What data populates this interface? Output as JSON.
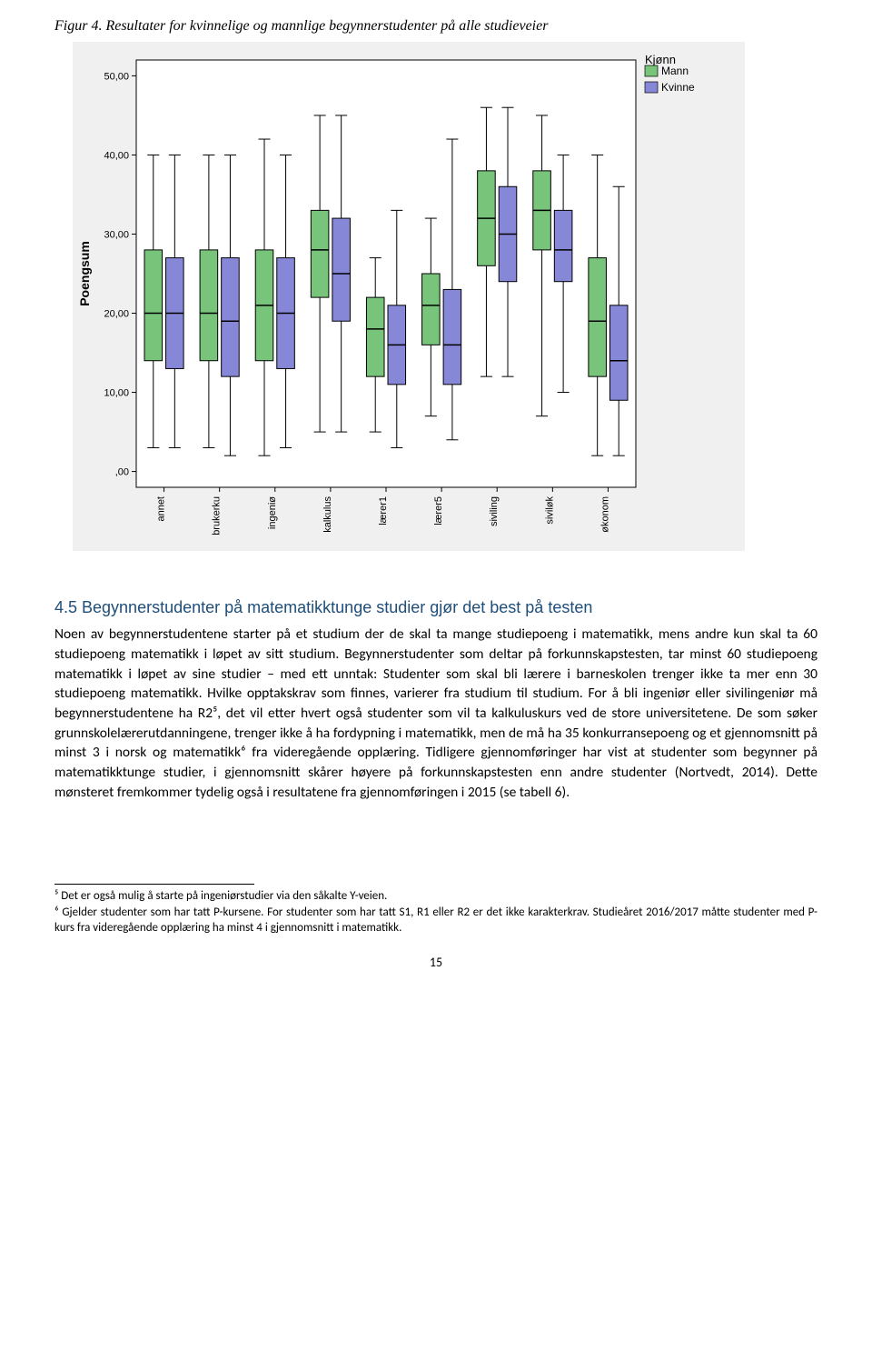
{
  "figure_caption": "Figur 4. Resultater for kvinnelige og mannlige begynnerstudenter på alle studieveier",
  "chart": {
    "type": "boxplot",
    "xlabel": "",
    "ylabel": "Poengsum",
    "ylabel_fontsize": 14,
    "ylabel_fontweight": "bold",
    "background_color": "#f0f0f0",
    "plot_bg_color": "#ffffff",
    "border_color": "#000000",
    "ylim": [
      -2,
      52
    ],
    "yticks": [
      0,
      10,
      20,
      30,
      40,
      50
    ],
    "ytick_labels": [
      ",00",
      "10,00",
      "20,00",
      "30,00",
      "40,00",
      "50,00"
    ],
    "tick_fontsize": 11,
    "categories": [
      "annet",
      "brukerku",
      "ingeniø",
      "kalkulus",
      "lærer1",
      "lærer5",
      "siviling",
      "siviløk",
      "økonom"
    ],
    "legend": {
      "title": "Kjønn",
      "items": [
        {
          "label": "Mann",
          "color": "#78c47a"
        },
        {
          "label": "Kvinne",
          "color": "#8787d8"
        }
      ],
      "title_fontsize": 13,
      "item_fontsize": 12
    },
    "box_colors": {
      "mann": "#78c47a",
      "kvinne": "#8787d8"
    },
    "box_border": "#000000",
    "median_color": "#000000",
    "whisker_color": "#000000",
    "box_width": 0.32,
    "boxes": [
      {
        "cat": "annet",
        "group": "mann",
        "min": 3,
        "q1": 14,
        "med": 20,
        "q3": 28,
        "max": 40
      },
      {
        "cat": "annet",
        "group": "kvinne",
        "min": 3,
        "q1": 13,
        "med": 20,
        "q3": 27,
        "max": 40
      },
      {
        "cat": "brukerku",
        "group": "mann",
        "min": 3,
        "q1": 14,
        "med": 20,
        "q3": 28,
        "max": 40
      },
      {
        "cat": "brukerku",
        "group": "kvinne",
        "min": 2,
        "q1": 12,
        "med": 19,
        "q3": 27,
        "max": 40
      },
      {
        "cat": "ingeniø",
        "group": "mann",
        "min": 2,
        "q1": 14,
        "med": 21,
        "q3": 28,
        "max": 42
      },
      {
        "cat": "ingeniø",
        "group": "kvinne",
        "min": 3,
        "q1": 13,
        "med": 20,
        "q3": 27,
        "max": 40
      },
      {
        "cat": "kalkulus",
        "group": "mann",
        "min": 5,
        "q1": 22,
        "med": 28,
        "q3": 33,
        "max": 45
      },
      {
        "cat": "kalkulus",
        "group": "kvinne",
        "min": 5,
        "q1": 19,
        "med": 25,
        "q3": 32,
        "max": 45
      },
      {
        "cat": "lærer1",
        "group": "mann",
        "min": 5,
        "q1": 12,
        "med": 18,
        "q3": 22,
        "max": 27
      },
      {
        "cat": "lærer1",
        "group": "kvinne",
        "min": 3,
        "q1": 11,
        "med": 16,
        "q3": 21,
        "max": 33
      },
      {
        "cat": "lærer5",
        "group": "mann",
        "min": 7,
        "q1": 16,
        "med": 21,
        "q3": 25,
        "max": 32
      },
      {
        "cat": "lærer5",
        "group": "kvinne",
        "min": 4,
        "q1": 11,
        "med": 16,
        "q3": 23,
        "max": 42
      },
      {
        "cat": "siviling",
        "group": "mann",
        "min": 12,
        "q1": 26,
        "med": 32,
        "q3": 38,
        "max": 46
      },
      {
        "cat": "siviling",
        "group": "kvinne",
        "min": 12,
        "q1": 24,
        "med": 30,
        "q3": 36,
        "max": 46
      },
      {
        "cat": "siviløk",
        "group": "mann",
        "min": 7,
        "q1": 28,
        "med": 33,
        "q3": 38,
        "max": 45
      },
      {
        "cat": "siviløk",
        "group": "kvinne",
        "min": 10,
        "q1": 24,
        "med": 28,
        "q3": 33,
        "max": 40
      },
      {
        "cat": "økonom",
        "group": "mann",
        "min": 2,
        "q1": 12,
        "med": 19,
        "q3": 27,
        "max": 40
      },
      {
        "cat": "økonom",
        "group": "kvinne",
        "min": 2,
        "q1": 9,
        "med": 14,
        "q3": 21,
        "max": 36
      }
    ]
  },
  "section_heading": "4.5 Begynnerstudenter på matematikktunge studier gjør det best på testen",
  "paragraph": "Noen av begynnerstudentene starter på et studium der de skal ta mange studiepoeng i matematikk, mens andre kun skal ta 60 studiepoeng matematikk i løpet av sitt studium. Begynnerstudenter som deltar på forkunnskapstesten, tar minst 60 studiepoeng matematikk i løpet av sine studier – med ett unntak: Studenter som skal bli lærere i barneskolen trenger ikke ta mer enn 30 studiepoeng matematikk. Hvilke opptakskrav som finnes, varierer fra studium til studium. For å bli ingeniør eller sivilingeniør må begynnerstudentene ha R2⁵, det vil etter hvert også studenter som vil ta kalkuluskurs ved de store universitetene. De som søker grunnskolelærerutdanningene, trenger ikke å ha fordypning i matematikk, men de må ha 35 konkurransepoeng og et gjennomsnitt på minst 3 i norsk og matematikk⁶ fra videregående opplæring. Tidligere gjennomføringer har vist at studenter som begynner på matematikktunge studier, i gjennomsnitt skårer høyere på forkunnskapstesten enn andre studenter (Nortvedt, 2014). Dette mønsteret fremkommer tydelig også i resultatene fra gjennomføringen i 2015 (se tabell 6).",
  "footnote_5": "⁵ Det er også mulig å starte på ingeniørstudier via den såkalte Y-veien.",
  "footnote_6": "⁶ Gjelder studenter som har tatt P-kursene. For studenter som har tatt S1, R1 eller R2 er det ikke karakterkrav. Studieåret 2016/2017 måtte studenter med P-kurs fra videregående opplæring ha minst 4 i gjennomsnitt i matematikk.",
  "page_number": "15"
}
